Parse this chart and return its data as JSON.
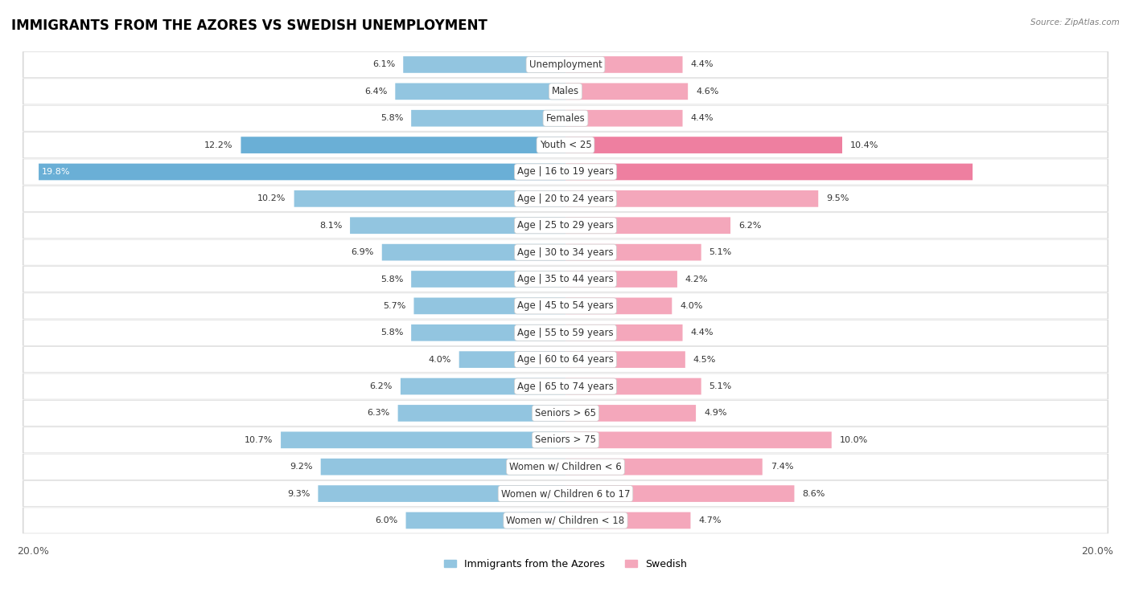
{
  "title": "IMMIGRANTS FROM THE AZORES VS SWEDISH UNEMPLOYMENT",
  "source": "Source: ZipAtlas.com",
  "categories": [
    "Unemployment",
    "Males",
    "Females",
    "Youth < 25",
    "Age | 16 to 19 years",
    "Age | 20 to 24 years",
    "Age | 25 to 29 years",
    "Age | 30 to 34 years",
    "Age | 35 to 44 years",
    "Age | 45 to 54 years",
    "Age | 55 to 59 years",
    "Age | 60 to 64 years",
    "Age | 65 to 74 years",
    "Seniors > 65",
    "Seniors > 75",
    "Women w/ Children < 6",
    "Women w/ Children 6 to 17",
    "Women w/ Children < 18"
  ],
  "left_values": [
    6.1,
    6.4,
    5.8,
    12.2,
    19.8,
    10.2,
    8.1,
    6.9,
    5.8,
    5.7,
    5.8,
    4.0,
    6.2,
    6.3,
    10.7,
    9.2,
    9.3,
    6.0
  ],
  "right_values": [
    4.4,
    4.6,
    4.4,
    10.4,
    15.3,
    9.5,
    6.2,
    5.1,
    4.2,
    4.0,
    4.4,
    4.5,
    5.1,
    4.9,
    10.0,
    7.4,
    8.6,
    4.7
  ],
  "left_color": "#92C5E0",
  "right_color": "#F4A7BB",
  "left_highlight_color": "#6AAFD6",
  "right_highlight_color": "#EE7FA0",
  "highlight_rows": [
    3,
    4
  ],
  "axis_max": 20.0,
  "legend_left": "Immigrants from the Azores",
  "legend_right": "Swedish",
  "bar_height": 0.62,
  "row_bg_color": "#f0f0f0",
  "row_fill_color": "#ffffff",
  "title_fontsize": 12,
  "label_fontsize": 8.5,
  "value_fontsize": 8
}
